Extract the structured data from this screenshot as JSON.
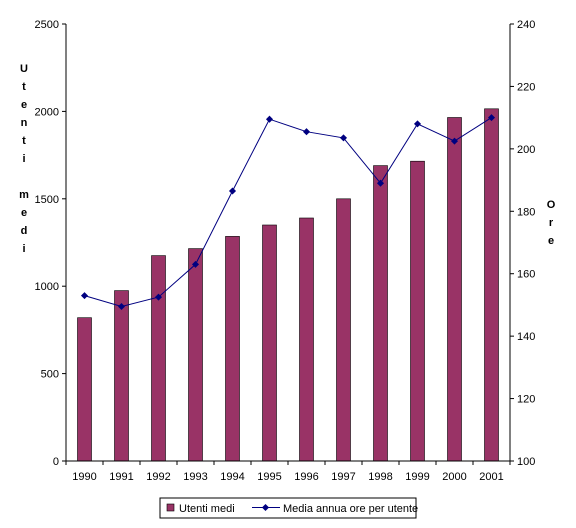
{
  "chart_data": {
    "type": "bar",
    "categories": [
      "1990",
      "1991",
      "1992",
      "1993",
      "1994",
      "1995",
      "1996",
      "1997",
      "1998",
      "1999",
      "2000",
      "2001"
    ],
    "series": [
      {
        "name": "Utenti medi",
        "type": "bar",
        "axis": "left",
        "color": "#993366",
        "values": [
          820,
          975,
          1175,
          1215,
          1285,
          1350,
          1390,
          1500,
          1690,
          1715,
          1965,
          2015
        ]
      },
      {
        "name": "Media annua ore per utente",
        "type": "line",
        "axis": "right",
        "color": "#000080",
        "values": [
          153,
          149.5,
          152.5,
          163,
          186.5,
          209.5,
          205.5,
          203.5,
          189,
          208,
          202.5,
          210
        ]
      }
    ],
    "y_left": {
      "label": "Utenti medi",
      "ylim": [
        0,
        2500
      ],
      "ticks": [
        0,
        500,
        1000,
        1500,
        2000,
        2500
      ]
    },
    "y_right": {
      "label": "Ore",
      "ylim": [
        100,
        240
      ],
      "ticks": [
        100,
        120,
        140,
        160,
        180,
        200,
        220,
        240
      ]
    },
    "grid": false,
    "legend": "bottom"
  }
}
